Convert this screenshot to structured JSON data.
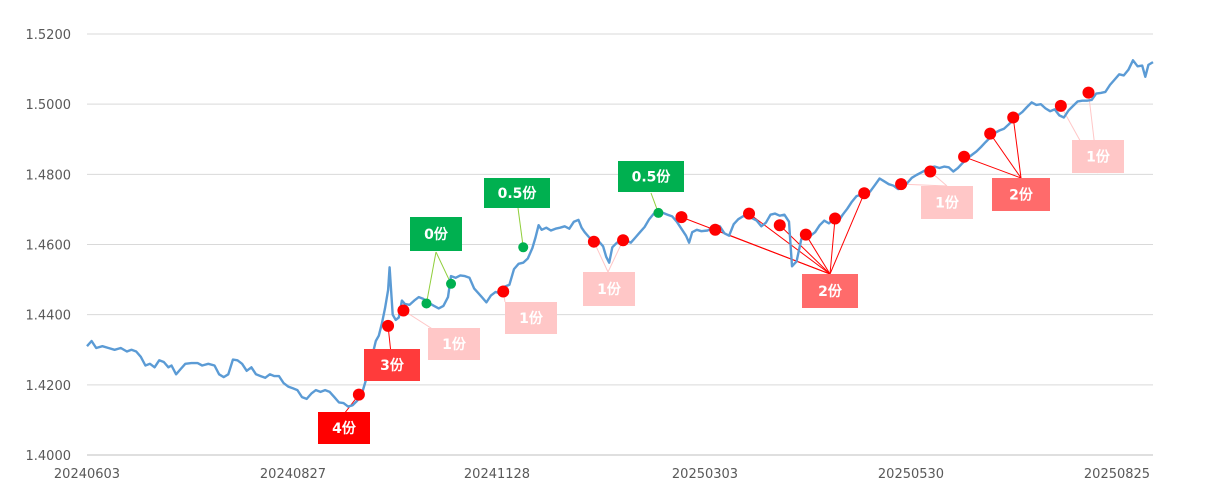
{
  "chart_data": {
    "type": "line",
    "ylim": [
      1.4,
      1.52
    ],
    "y_ticks": [
      "1.5200",
      "1.5000",
      "1.4800",
      "1.4600",
      "1.4400",
      "1.4200",
      "1.4000"
    ],
    "x_ticks": [
      "20240603",
      "20240827",
      "20241128",
      "20250303",
      "20250530",
      "20250825"
    ],
    "grid": true,
    "line_color": "#5b9bd5",
    "colors": {
      "buy_dot": "#ff0000",
      "sell_dot": "#00b050",
      "buy_label": "#ff0000",
      "buy_label_medium": "#ff3b3b",
      "buy_label_light": "#ff6b6b",
      "buy_label_pale": "#ffc7c7",
      "sell_label": "#00b050"
    },
    "series": [
      {
        "values": [
          [
            0,
            1.431
          ],
          [
            3,
            1.4325
          ],
          [
            6,
            1.4305
          ],
          [
            10,
            1.431
          ],
          [
            14,
            1.4305
          ],
          [
            18,
            1.43
          ],
          [
            22,
            1.4305
          ],
          [
            26,
            1.4295
          ],
          [
            29,
            1.43
          ],
          [
            32,
            1.4295
          ],
          [
            35,
            1.428
          ],
          [
            38,
            1.4255
          ],
          [
            41,
            1.426
          ],
          [
            44,
            1.425
          ],
          [
            47,
            1.427
          ],
          [
            50,
            1.4265
          ],
          [
            53,
            1.425
          ],
          [
            55,
            1.4255
          ],
          [
            58,
            1.423
          ],
          [
            61,
            1.4245
          ],
          [
            64,
            1.426
          ],
          [
            68,
            1.4262
          ],
          [
            72,
            1.4262
          ],
          [
            75,
            1.4255
          ],
          [
            79,
            1.426
          ],
          [
            83,
            1.4255
          ],
          [
            86,
            1.423
          ],
          [
            89,
            1.4222
          ],
          [
            92,
            1.423
          ],
          [
            95,
            1.4272
          ],
          [
            98,
            1.427
          ],
          [
            101,
            1.426
          ],
          [
            104,
            1.424
          ],
          [
            107,
            1.425
          ],
          [
            110,
            1.423
          ],
          [
            113,
            1.4225
          ],
          [
            116,
            1.422
          ],
          [
            119,
            1.423
          ],
          [
            122,
            1.4225
          ],
          [
            125,
            1.4225
          ],
          [
            128,
            1.4205
          ],
          [
            131,
            1.4195
          ],
          [
            134,
            1.419
          ],
          [
            137,
            1.4185
          ],
          [
            140,
            1.4165
          ],
          [
            143,
            1.416
          ],
          [
            146,
            1.4175
          ],
          [
            149,
            1.4185
          ],
          [
            152,
            1.418
          ],
          [
            155,
            1.4185
          ],
          [
            158,
            1.418
          ],
          [
            161,
            1.4165
          ],
          [
            164,
            1.415
          ],
          [
            167,
            1.4148
          ],
          [
            170,
            1.4138
          ],
          [
            173,
            1.4142
          ],
          [
            176,
            1.4155
          ],
          [
            179,
            1.4175
          ],
          [
            182,
            1.422
          ],
          [
            185,
            1.427
          ],
          [
            188,
            1.4325
          ],
          [
            190,
            1.434
          ],
          [
            192,
            1.4375
          ],
          [
            194,
            1.4418
          ],
          [
            196,
            1.447
          ],
          [
            197,
            1.4535
          ],
          [
            199,
            1.44
          ],
          [
            201,
            1.4385
          ],
          [
            203,
            1.4392
          ],
          [
            205,
            1.444
          ],
          [
            207,
            1.443
          ],
          [
            210,
            1.4428
          ],
          [
            213,
            1.444
          ],
          [
            216,
            1.445
          ],
          [
            219,
            1.4445
          ],
          [
            222,
            1.4435
          ],
          [
            226,
            1.4425
          ],
          [
            229,
            1.4418
          ],
          [
            232,
            1.4425
          ],
          [
            235,
            1.445
          ],
          [
            237,
            1.451
          ],
          [
            240,
            1.4505
          ],
          [
            243,
            1.4512
          ],
          [
            246,
            1.451
          ],
          [
            249,
            1.4505
          ],
          [
            252,
            1.4475
          ],
          [
            255,
            1.446
          ],
          [
            257,
            1.445
          ],
          [
            260,
            1.4435
          ],
          [
            263,
            1.4455
          ],
          [
            266,
            1.4465
          ],
          [
            269,
            1.446
          ],
          [
            272,
            1.448
          ],
          [
            275,
            1.4485
          ],
          [
            278,
            1.453
          ],
          [
            281,
            1.4545
          ],
          [
            284,
            1.4548
          ],
          [
            287,
            1.456
          ],
          [
            290,
            1.459
          ],
          [
            292,
            1.462
          ],
          [
            294,
            1.4655
          ],
          [
            296,
            1.4642
          ],
          [
            299,
            1.4648
          ],
          [
            302,
            1.464
          ],
          [
            305,
            1.4645
          ],
          [
            308,
            1.4648
          ],
          [
            311,
            1.4652
          ],
          [
            314,
            1.4645
          ],
          [
            317,
            1.4665
          ],
          [
            320,
            1.467
          ],
          [
            322,
            1.4648
          ],
          [
            324,
            1.4635
          ],
          [
            327,
            1.462
          ],
          [
            330,
            1.4612
          ],
          [
            333,
            1.461
          ],
          [
            336,
            1.4595
          ],
          [
            338,
            1.4565
          ],
          [
            340,
            1.4548
          ],
          [
            342,
            1.4592
          ],
          [
            345,
            1.4605
          ],
          [
            348,
            1.4608
          ],
          [
            351,
            1.4612
          ],
          [
            354,
            1.4605
          ],
          [
            357,
            1.462
          ],
          [
            360,
            1.4635
          ],
          [
            363,
            1.465
          ],
          [
            366,
            1.4672
          ],
          [
            369,
            1.4688
          ],
          [
            372,
            1.4692
          ],
          [
            375,
            1.469
          ],
          [
            378,
            1.4685
          ],
          [
            381,
            1.468
          ],
          [
            384,
            1.4665
          ],
          [
            387,
            1.4645
          ],
          [
            390,
            1.4625
          ],
          [
            392,
            1.4605
          ],
          [
            394,
            1.4635
          ],
          [
            397,
            1.4642
          ],
          [
            400,
            1.4638
          ],
          [
            404,
            1.464
          ],
          [
            408,
            1.465
          ],
          [
            412,
            1.4652
          ],
          [
            415,
            1.4632
          ],
          [
            418,
            1.4625
          ],
          [
            421,
            1.4658
          ],
          [
            424,
            1.4672
          ],
          [
            427,
            1.468
          ],
          [
            430,
            1.4685
          ],
          [
            433,
            1.4675
          ],
          [
            436,
            1.4668
          ],
          [
            439,
            1.4652
          ],
          [
            442,
            1.4662
          ],
          [
            445,
            1.4685
          ],
          [
            448,
            1.4688
          ],
          [
            451,
            1.4682
          ],
          [
            454,
            1.4685
          ],
          [
            457,
            1.4665
          ],
          [
            459,
            1.4538
          ],
          [
            462,
            1.4552
          ],
          [
            465,
            1.4615
          ],
          [
            468,
            1.4628
          ],
          [
            471,
            1.4625
          ],
          [
            474,
            1.4635
          ],
          [
            477,
            1.4655
          ],
          [
            480,
            1.4668
          ],
          [
            483,
            1.466
          ],
          [
            486,
            1.4672
          ],
          [
            489,
            1.4665
          ],
          [
            492,
            1.4685
          ],
          [
            495,
            1.4702
          ],
          [
            498,
            1.4722
          ],
          [
            501,
            1.4738
          ],
          [
            504,
            1.4742
          ],
          [
            507,
            1.474
          ],
          [
            510,
            1.4752
          ],
          [
            513,
            1.477
          ],
          [
            516,
            1.4788
          ],
          [
            519,
            1.478
          ],
          [
            522,
            1.4772
          ],
          [
            525,
            1.4768
          ],
          [
            528,
            1.4758
          ],
          [
            531,
            1.476
          ],
          [
            534,
            1.4775
          ],
          [
            537,
            1.479
          ],
          [
            540,
            1.4798
          ],
          [
            543,
            1.4805
          ],
          [
            546,
            1.4812
          ],
          [
            549,
            1.482
          ],
          [
            552,
            1.4822
          ],
          [
            555,
            1.4818
          ],
          [
            558,
            1.4822
          ],
          [
            561,
            1.482
          ],
          [
            564,
            1.4808
          ],
          [
            567,
            1.4818
          ],
          [
            570,
            1.4832
          ],
          [
            573,
            1.4845
          ],
          [
            576,
            1.4855
          ],
          [
            579,
            1.4865
          ],
          [
            582,
            1.4878
          ],
          [
            585,
            1.4892
          ],
          [
            588,
            1.4905
          ],
          [
            591,
            1.4918
          ],
          [
            594,
            1.4925
          ],
          [
            597,
            1.493
          ],
          [
            600,
            1.4942
          ],
          [
            603,
            1.4955
          ],
          [
            606,
            1.4968
          ],
          [
            609,
            1.4978
          ],
          [
            612,
            1.4992
          ],
          [
            615,
            1.5005
          ],
          [
            618,
            1.4998
          ],
          [
            621,
            1.5
          ],
          [
            624,
            1.4988
          ],
          [
            627,
            1.498
          ],
          [
            630,
            1.4985
          ],
          [
            633,
            1.4968
          ],
          [
            636,
            1.4962
          ],
          [
            639,
            1.4982
          ],
          [
            642,
            1.4995
          ],
          [
            645,
            1.5008
          ],
          [
            648,
            1.501
          ],
          [
            651,
            1.501
          ],
          [
            654,
            1.5012
          ],
          [
            657,
            1.503
          ],
          [
            660,
            1.5032
          ],
          [
            663,
            1.5035
          ],
          [
            666,
            1.5055
          ],
          [
            669,
            1.507
          ],
          [
            672,
            1.5085
          ],
          [
            675,
            1.5082
          ],
          [
            678,
            1.5098
          ],
          [
            681,
            1.5125
          ],
          [
            684,
            1.5108
          ],
          [
            687,
            1.511
          ],
          [
            689,
            1.5078
          ],
          [
            691,
            1.5112
          ],
          [
            694,
            1.512
          ]
        ]
      }
    ],
    "buy_points": [
      [
        177,
        1.4172
      ],
      [
        196,
        1.4368
      ],
      [
        206,
        1.4412
      ],
      [
        271,
        1.4466
      ],
      [
        330,
        1.4608
      ],
      [
        349,
        1.4612
      ],
      [
        387,
        1.4678
      ],
      [
        409,
        1.4642
      ],
      [
        431,
        1.4688
      ],
      [
        451,
        1.4655
      ],
      [
        468,
        1.4628
      ],
      [
        487,
        1.4674
      ],
      [
        506,
        1.4746
      ],
      [
        530,
        1.4772
      ],
      [
        549,
        1.4808
      ],
      [
        571,
        1.485
      ],
      [
        588,
        1.4916
      ],
      [
        603,
        1.4962
      ],
      [
        634,
        1.4995
      ],
      [
        652,
        1.5033
      ]
    ],
    "sell_points": [
      [
        221,
        1.4432
      ],
      [
        237,
        1.4488
      ],
      [
        284,
        1.4592
      ],
      [
        372,
        1.469
      ]
    ],
    "annotations": [
      {
        "text": "4份",
        "style": "buy",
        "points": [
          0
        ]
      },
      {
        "text": "3份",
        "style": "buy_medium",
        "points": [
          1
        ]
      },
      {
        "text": "1份",
        "style": "buy_pale",
        "points": [
          2
        ]
      },
      {
        "text": "0份",
        "style": "sell",
        "points": [
          0,
          1
        ]
      },
      {
        "text": "1份",
        "style": "buy_pale",
        "points": [
          3
        ]
      },
      {
        "text": "0.5份",
        "style": "sell",
        "points": [
          2
        ]
      },
      {
        "text": "1份",
        "style": "buy_pale",
        "points": [
          4,
          5
        ]
      },
      {
        "text": "0.5份",
        "style": "sell",
        "points": [
          3
        ]
      },
      {
        "text": "2份",
        "style": "buy_light",
        "points": [
          6,
          7,
          8,
          9,
          10,
          11,
          12
        ]
      },
      {
        "text": "1份",
        "style": "buy_pale",
        "points": [
          13,
          14
        ]
      },
      {
        "text": "2份",
        "style": "buy_light",
        "points": [
          15,
          16,
          17
        ]
      },
      {
        "text": "1份",
        "style": "buy_pale",
        "points": [
          18,
          19
        ]
      }
    ]
  }
}
